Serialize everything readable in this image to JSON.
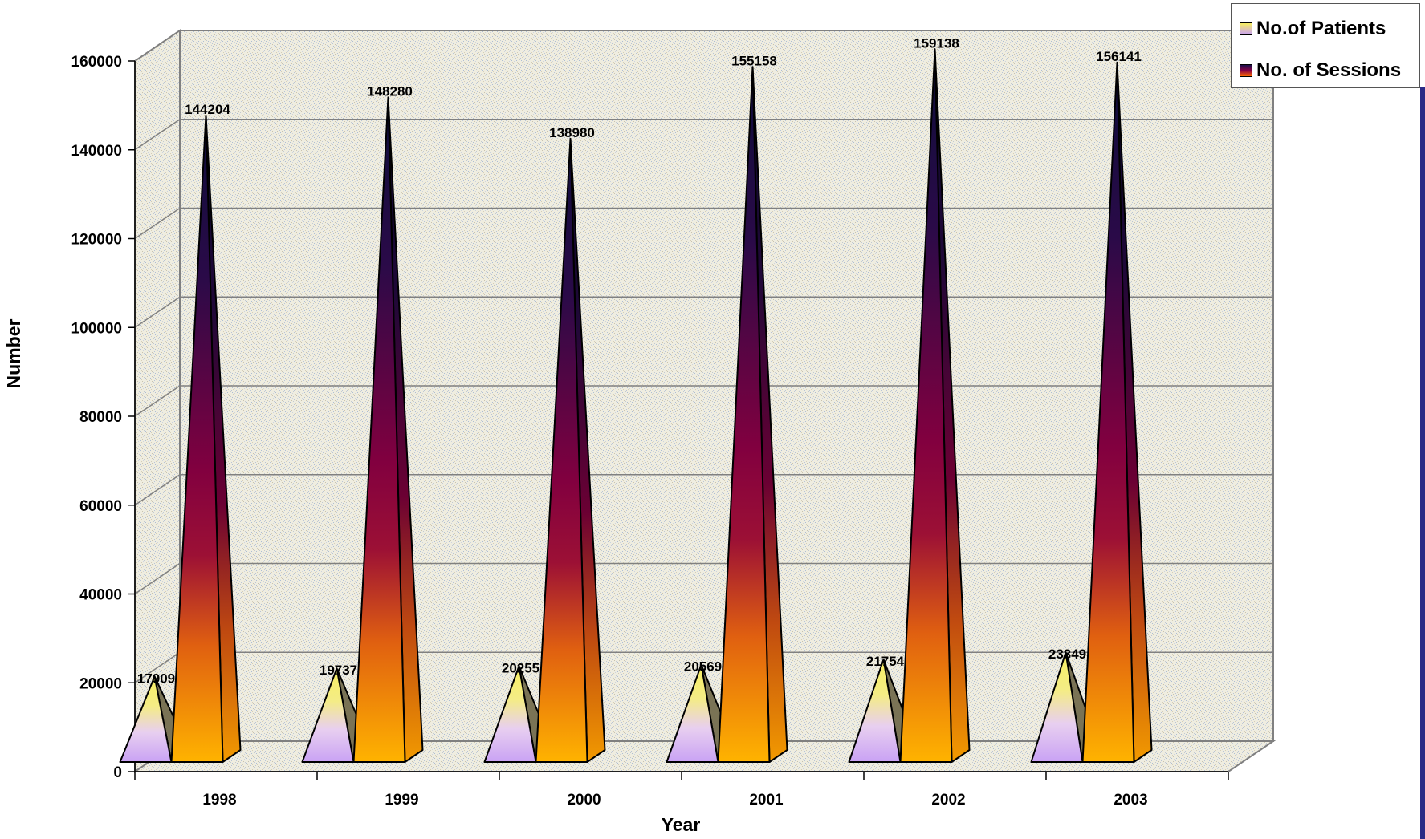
{
  "chart_data": {
    "type": "bar",
    "style": "3d-pyramid",
    "categories": [
      "1998",
      "1999",
      "2000",
      "2001",
      "2002",
      "2003"
    ],
    "series": [
      {
        "name": "No.of Patients",
        "values": [
          17909,
          19737,
          20255,
          20569,
          21754,
          23349
        ]
      },
      {
        "name": "No. of Sessions",
        "values": [
          144204,
          148280,
          138980,
          155158,
          159138,
          156141
        ]
      }
    ],
    "value_labels": {
      "patients": [
        "17909",
        "19737",
        "20255",
        "20569",
        "21754",
        "23349"
      ],
      "sessions": [
        "144204",
        "148280",
        "138980",
        "155158",
        "159138",
        "156141"
      ]
    },
    "y_ticks": [
      "0",
      "20000",
      "40000",
      "60000",
      "80000",
      "100000",
      "120000",
      "140000",
      "160000"
    ],
    "xlabel": "Year",
    "ylabel": "Number",
    "ylim": [
      0,
      160000
    ],
    "grid": true,
    "legend_position": "top-right",
    "colors": {
      "patients_top": "#f7ef62",
      "patients_bottom": "#c9a2f4",
      "sessions_top": "#1a0f4a",
      "sessions_mid": "#8a0046",
      "sessions_bottom": "#ffb300",
      "gridline": "#808080",
      "wall_background": "#efede0",
      "accent_bar": "#2b2b86"
    }
  }
}
